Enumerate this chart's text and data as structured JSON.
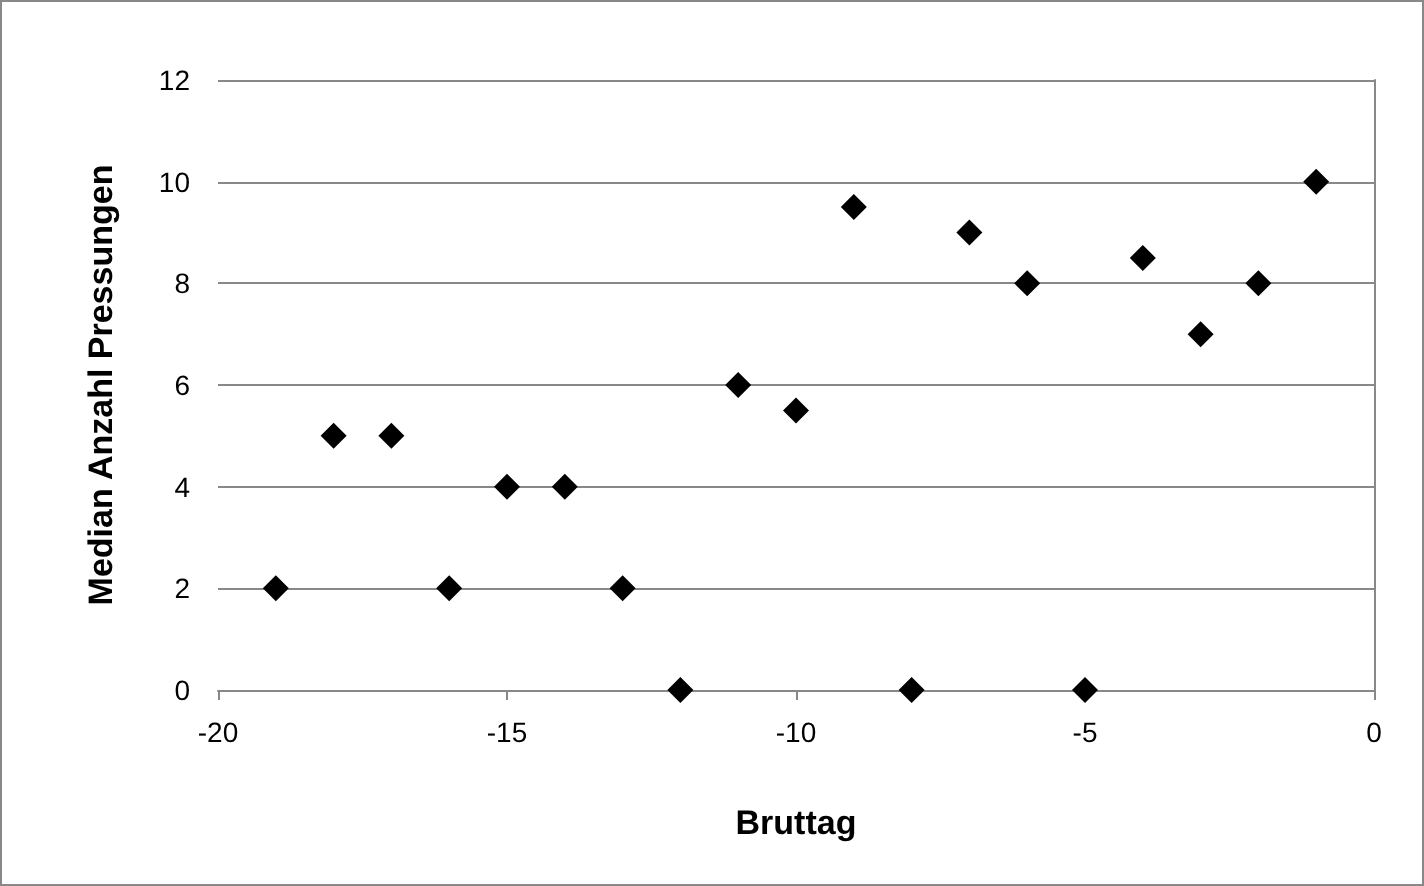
{
  "chart_data": {
    "type": "scatter",
    "xlabel": "Bruttag",
    "ylabel": "Median Anzahl Pressungen",
    "x": [
      -19,
      -18,
      -17,
      -16,
      -15,
      -14,
      -13,
      -12,
      -11,
      -10,
      -9,
      -8,
      -7,
      -6,
      -5,
      -4,
      -3,
      -2,
      -1
    ],
    "series": [
      {
        "color": "#000000",
        "values": [
          2,
          5,
          5,
          2,
          4,
          4,
          2,
          0,
          6,
          5.5,
          9.5,
          0,
          9,
          8,
          0,
          8.5,
          7,
          8,
          10
        ]
      }
    ],
    "xlim": [
      -20,
      0
    ],
    "xticks": [
      -20,
      -15,
      -10,
      -5,
      0
    ],
    "ylim": [
      0,
      12
    ],
    "yticks": [
      0,
      2,
      4,
      6,
      8,
      10,
      12
    ],
    "grid": "y",
    "marker": "diamond"
  }
}
